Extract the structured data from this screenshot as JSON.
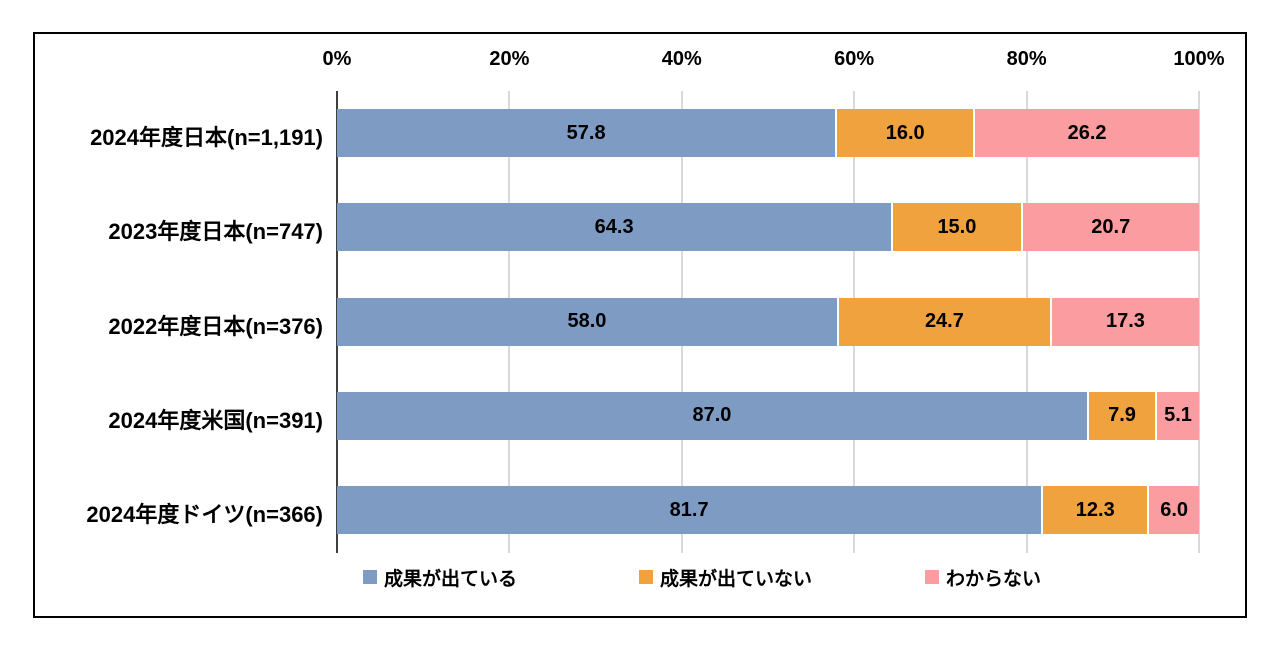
{
  "chart_data": {
    "type": "bar",
    "variant": "horizontal-stacked-100",
    "title": "",
    "categories": [
      "2024年度日本(n=1,191)",
      "2023年度日本(n=747)",
      "2022年度日本(n=376)",
      "2024年度米国(n=391)",
      "2024年度ドイツ(n=366)"
    ],
    "series": [
      {
        "name": "成果が出ている",
        "color": "#7E9CC3",
        "values": [
          57.8,
          64.3,
          58.0,
          87.0,
          81.7
        ]
      },
      {
        "name": "成果が出ていない",
        "color": "#EFA23E",
        "values": [
          16.0,
          15.0,
          24.7,
          7.9,
          12.3
        ]
      },
      {
        "name": "わからない",
        "color": "#FA9CA0",
        "values": [
          26.2,
          20.7,
          17.3,
          5.1,
          6.0
        ]
      }
    ],
    "x_axis": {
      "position": "top",
      "min": 0,
      "max": 100,
      "tick_labels": [
        "0%",
        "20%",
        "40%",
        "60%",
        "80%",
        "100%"
      ]
    },
    "grid": true,
    "legend_position": "bottom",
    "value_labels": "inside-center, one decimal"
  },
  "colors": {
    "gridline": "#d9d9d9",
    "zero_axis_line": "#3f3f3f",
    "frame_border": "#000000",
    "text": "#000000",
    "background": "#ffffff"
  }
}
